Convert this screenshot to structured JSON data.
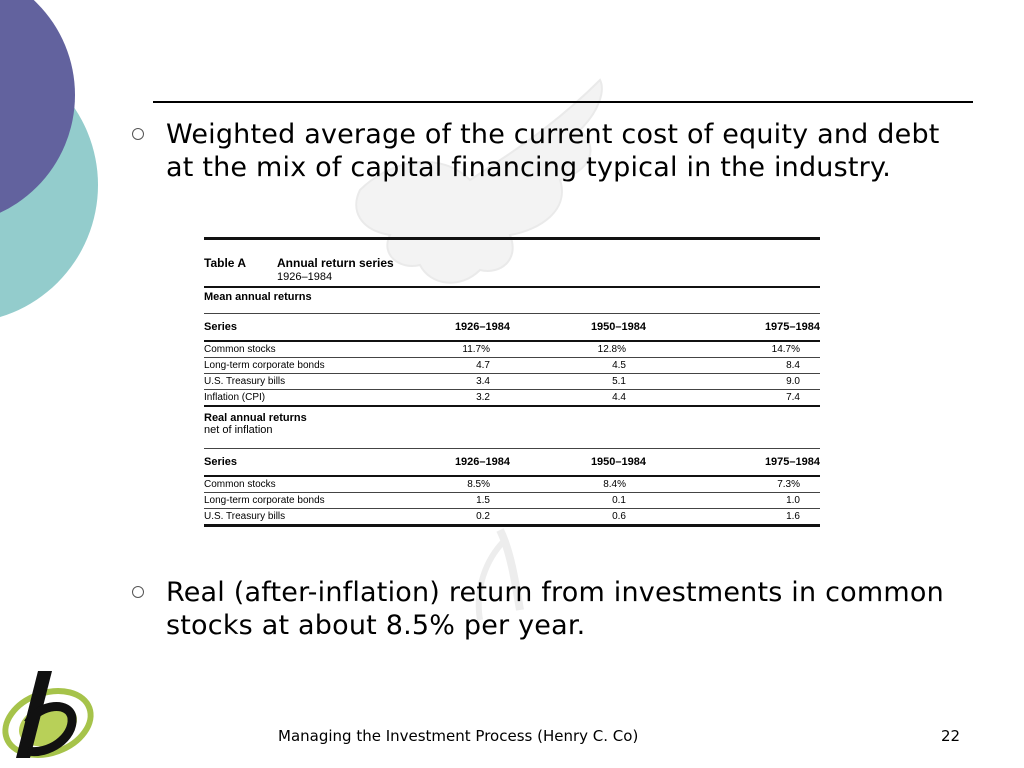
{
  "slide": {
    "bullets": [
      "Weighted average of the current cost of equity and debt at the mix of capital financing typical in the industry.",
      "Real (after-inflation) return from investments in common stocks at about 8.5% per year."
    ],
    "footer": {
      "title": "Managing the Investment Process (Henry C. Co)",
      "page": "22"
    },
    "colors": {
      "circle_purple": "#62629e",
      "circle_teal": "#93cccc",
      "logo_green": "#a6c34a"
    }
  },
  "table": {
    "label": "Table A",
    "title": "Annual return series",
    "years": "1926–1984",
    "columns": [
      "Series",
      "1926–1984",
      "1950–1984",
      "1975–1984"
    ],
    "mean_section": {
      "title": "Mean annual returns",
      "rows": [
        [
          "Common stocks",
          "11.7%",
          "12.8%",
          "14.7%"
        ],
        [
          "Long-term corporate bonds",
          "4.7",
          "4.5",
          "8.4"
        ],
        [
          "U.S. Treasury bills",
          "3.4",
          "5.1",
          "9.0"
        ],
        [
          "Inflation (CPI)",
          "3.2",
          "4.4",
          "7.4"
        ]
      ]
    },
    "real_section": {
      "title": "Real annual returns",
      "subtitle": "net of inflation",
      "rows": [
        [
          "Common stocks",
          "8.5%",
          "8.4%",
          "7.3%"
        ],
        [
          "Long-term corporate bonds",
          "1.5",
          "0.1",
          "1.0"
        ],
        [
          "U.S. Treasury bills",
          "0.2",
          "0.6",
          "1.6"
        ]
      ]
    }
  }
}
